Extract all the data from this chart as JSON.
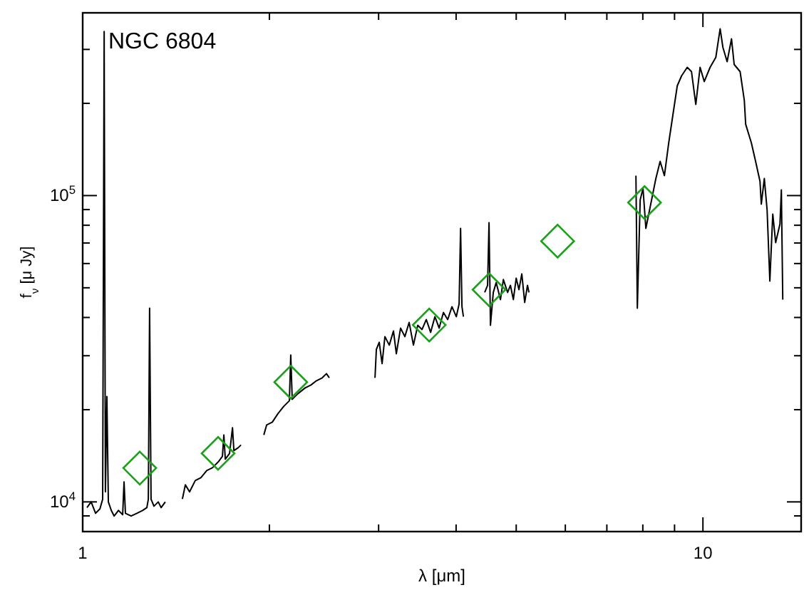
{
  "chart_data": {
    "type": "line",
    "title": "NGC 6804",
    "xlabel": "λ [μm]",
    "ylabel": "f$_{ν}$ [μ Jy]",
    "log": "xy",
    "xlim": [
      1,
      14.4
    ],
    "ylim": [
      8000,
      395000
    ],
    "xticks": [
      {
        "value": 1,
        "label": "1"
      },
      {
        "value": 2,
        "label": null
      },
      {
        "value": 3,
        "label": null
      },
      {
        "value": 4,
        "label": null
      },
      {
        "value": 5,
        "label": null
      },
      {
        "value": 6,
        "label": null
      },
      {
        "value": 7,
        "label": null
      },
      {
        "value": 8,
        "label": null
      },
      {
        "value": 9,
        "label": null
      },
      {
        "value": 10,
        "label": "10"
      }
    ],
    "yticks": [
      {
        "value": 9000,
        "label": null
      },
      {
        "value": 10000,
        "label": "10$^{4}$"
      },
      {
        "value": 20000,
        "label": null
      },
      {
        "value": 30000,
        "label": null
      },
      {
        "value": 40000,
        "label": null
      },
      {
        "value": 50000,
        "label": null
      },
      {
        "value": 60000,
        "label": null
      },
      {
        "value": 70000,
        "label": null
      },
      {
        "value": 80000,
        "label": null
      },
      {
        "value": 90000,
        "label": null
      },
      {
        "value": 100000,
        "label": "10$^{5}$"
      },
      {
        "value": 200000,
        "label": null
      },
      {
        "value": 300000,
        "label": null
      }
    ],
    "series": [
      {
        "color": "#000000",
        "x": [
          1.016,
          1.032,
          1.049,
          1.066,
          1.077,
          1.083,
          1.088,
          1.094,
          1.1,
          1.112,
          1.124,
          1.142,
          1.16,
          1.166,
          1.172,
          1.197,
          1.223,
          1.249,
          1.269,
          1.276,
          1.282,
          1.289,
          1.303,
          1.324,
          1.338,
          1.359,
          1.4,
          1.448,
          1.464,
          1.487,
          1.519,
          1.551,
          1.585,
          1.619,
          1.654,
          1.68,
          1.689,
          1.698,
          1.725,
          1.744,
          1.753,
          1.781,
          1.8,
          1.88,
          1.959,
          1.98,
          2.022,
          2.065,
          2.109,
          2.154,
          2.165,
          2.177,
          2.224,
          2.284,
          2.333,
          2.382,
          2.433,
          2.472,
          2.498,
          2.7,
          2.96,
          2.975,
          3.007,
          3.039,
          3.071,
          3.121,
          3.17,
          3.204,
          3.255,
          3.307,
          3.36,
          3.414,
          3.469,
          3.525,
          3.581,
          3.639,
          3.697,
          3.756,
          3.816,
          3.877,
          3.939,
          4.003,
          4.045,
          4.067,
          4.088,
          4.11,
          4.3,
          4.448,
          4.496,
          4.52,
          4.544,
          4.592,
          4.642,
          4.716,
          4.767,
          4.843,
          4.894,
          4.947,
          5.0,
          5.051,
          5.105,
          5.16,
          5.214,
          5.242,
          6.5,
          7.798,
          7.839,
          7.922,
          8.006,
          8.091,
          8.265,
          8.397,
          8.531,
          8.668,
          8.807,
          8.948,
          9.091,
          9.237,
          9.434,
          9.585,
          9.739,
          9.895,
          10.05,
          10.27,
          10.49,
          10.66,
          10.77,
          10.94,
          11.12,
          11.23,
          11.48,
          11.66,
          11.72,
          11.97,
          12.16,
          12.36,
          12.42,
          12.56,
          12.69,
          12.82,
          12.96,
          13.1,
          13.31,
          13.38,
          13.45
        ],
        "values": [
          9580,
          10000,
          9180,
          9480,
          10200,
          343000,
          10780,
          22090,
          10000,
          9380,
          8990,
          9380,
          9080,
          11620,
          9180,
          8990,
          9180,
          9380,
          9580,
          10200,
          42910,
          10200,
          9680,
          10000,
          9580,
          10000,
          null,
          10220,
          11370,
          10780,
          11740,
          12000,
          12660,
          12930,
          13500,
          14090,
          16540,
          13790,
          14390,
          17460,
          14710,
          15020,
          15350,
          null,
          16540,
          17840,
          18220,
          19430,
          20490,
          21390,
          30140,
          21620,
          22570,
          23560,
          24070,
          24860,
          25400,
          26220,
          25400,
          null,
          25400,
          31460,
          33190,
          28270,
          34640,
          32490,
          36150,
          30460,
          36930,
          34640,
          38550,
          32490,
          37730,
          36540,
          39380,
          35770,
          40240,
          36930,
          41550,
          39380,
          43370,
          40240,
          44310,
          78160,
          43370,
          40240,
          null,
          48280,
          50930,
          81560,
          37730,
          48280,
          52030,
          45760,
          53190,
          48280,
          50930,
          45760,
          53750,
          49320,
          55500,
          44790,
          50930,
          48280,
          null,
          116200,
          42910,
          96830,
          105500,
          78160,
          96830,
          113700,
          129300,
          116200,
          148600,
          184100,
          228100,
          245900,
          262200,
          253900,
          198400,
          262200,
          235600,
          262200,
          282600,
          350200,
          304600,
          273700,
          324800,
          267900,
          253900,
          204900,
          170900,
          148600,
          129300,
          111300,
          93780,
          113700,
          89840,
          52600,
          87000,
          70230,
          80720,
          104400,
          45760
        ]
      },
      {
        "type": "scatter",
        "marker": "diamond",
        "color": "#1aa01a",
        "x": [
          1.236,
          1.653,
          2.165,
          3.62,
          4.52,
          5.83,
          8.05
        ],
        "values": [
          12900,
          14400,
          24600,
          37800,
          49300,
          71000,
          94900
        ]
      }
    ]
  }
}
